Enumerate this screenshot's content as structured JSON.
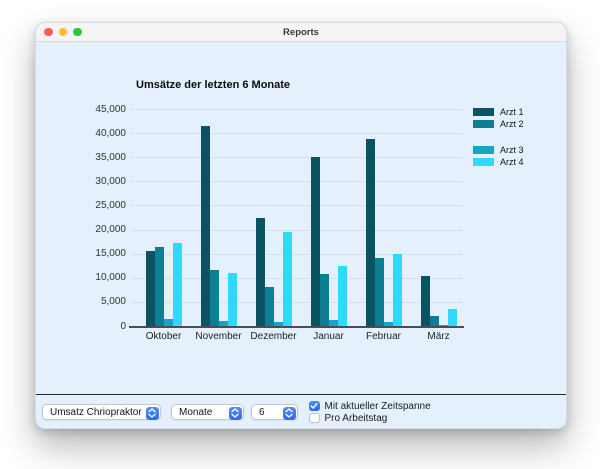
{
  "window": {
    "title": "Reports"
  },
  "chart_data": {
    "type": "bar",
    "title": "Umsätze der letzten 6 Monate",
    "categories": [
      "Oktober",
      "November",
      "Dezember",
      "Januar",
      "Februar",
      "März"
    ],
    "series": [
      {
        "name": "Arzt 1",
        "color": "#0b5263",
        "values": [
          15500,
          41500,
          22500,
          35000,
          38700,
          10300
        ]
      },
      {
        "name": "Arzt 2",
        "color": "#0d7f95",
        "values": [
          16300,
          11700,
          8000,
          10700,
          14000,
          2000
        ]
      },
      {
        "name": "Arzt 3",
        "color": "#15a6c4",
        "values": [
          1500,
          1000,
          800,
          1200,
          900,
          250
        ]
      },
      {
        "name": "Arzt 4",
        "color": "#2fd9fb",
        "values": [
          17200,
          11000,
          19400,
          12400,
          15000,
          3500
        ]
      }
    ],
    "ylim": [
      0,
      45000
    ],
    "ytick_step": 5000,
    "ytick_labels": [
      "0",
      "5,000",
      "10,000",
      "15,000",
      "20,000",
      "25,000",
      "30,000",
      "35,000",
      "40,000",
      "45,000"
    ],
    "grid": true,
    "legend_position": "right",
    "legend_groups": [
      [
        "Arzt 1",
        "Arzt 2"
      ],
      [
        "Arzt 3",
        "Arzt 4"
      ]
    ]
  },
  "controls": {
    "report_select": {
      "value": "Umsatz Chriopraktor"
    },
    "period_select": {
      "value": "Monate"
    },
    "count_select": {
      "value": "6"
    },
    "checkbox_zeitspanne": {
      "label": "Mit aktueller Zeitspanne",
      "checked": true
    },
    "checkbox_arbeitstag": {
      "label": "Pro Arbeitstag",
      "checked": false
    }
  },
  "colors": {
    "window_background": "#e4f0fb",
    "titlebar_background": "#f6f4f5",
    "accent_blue": "#3478f6",
    "gridline": "#d6dee8",
    "axis_line": "#4a4e53",
    "traffic_red": "#ff5e57",
    "traffic_yellow": "#febb2e",
    "traffic_green": "#28c73f"
  }
}
